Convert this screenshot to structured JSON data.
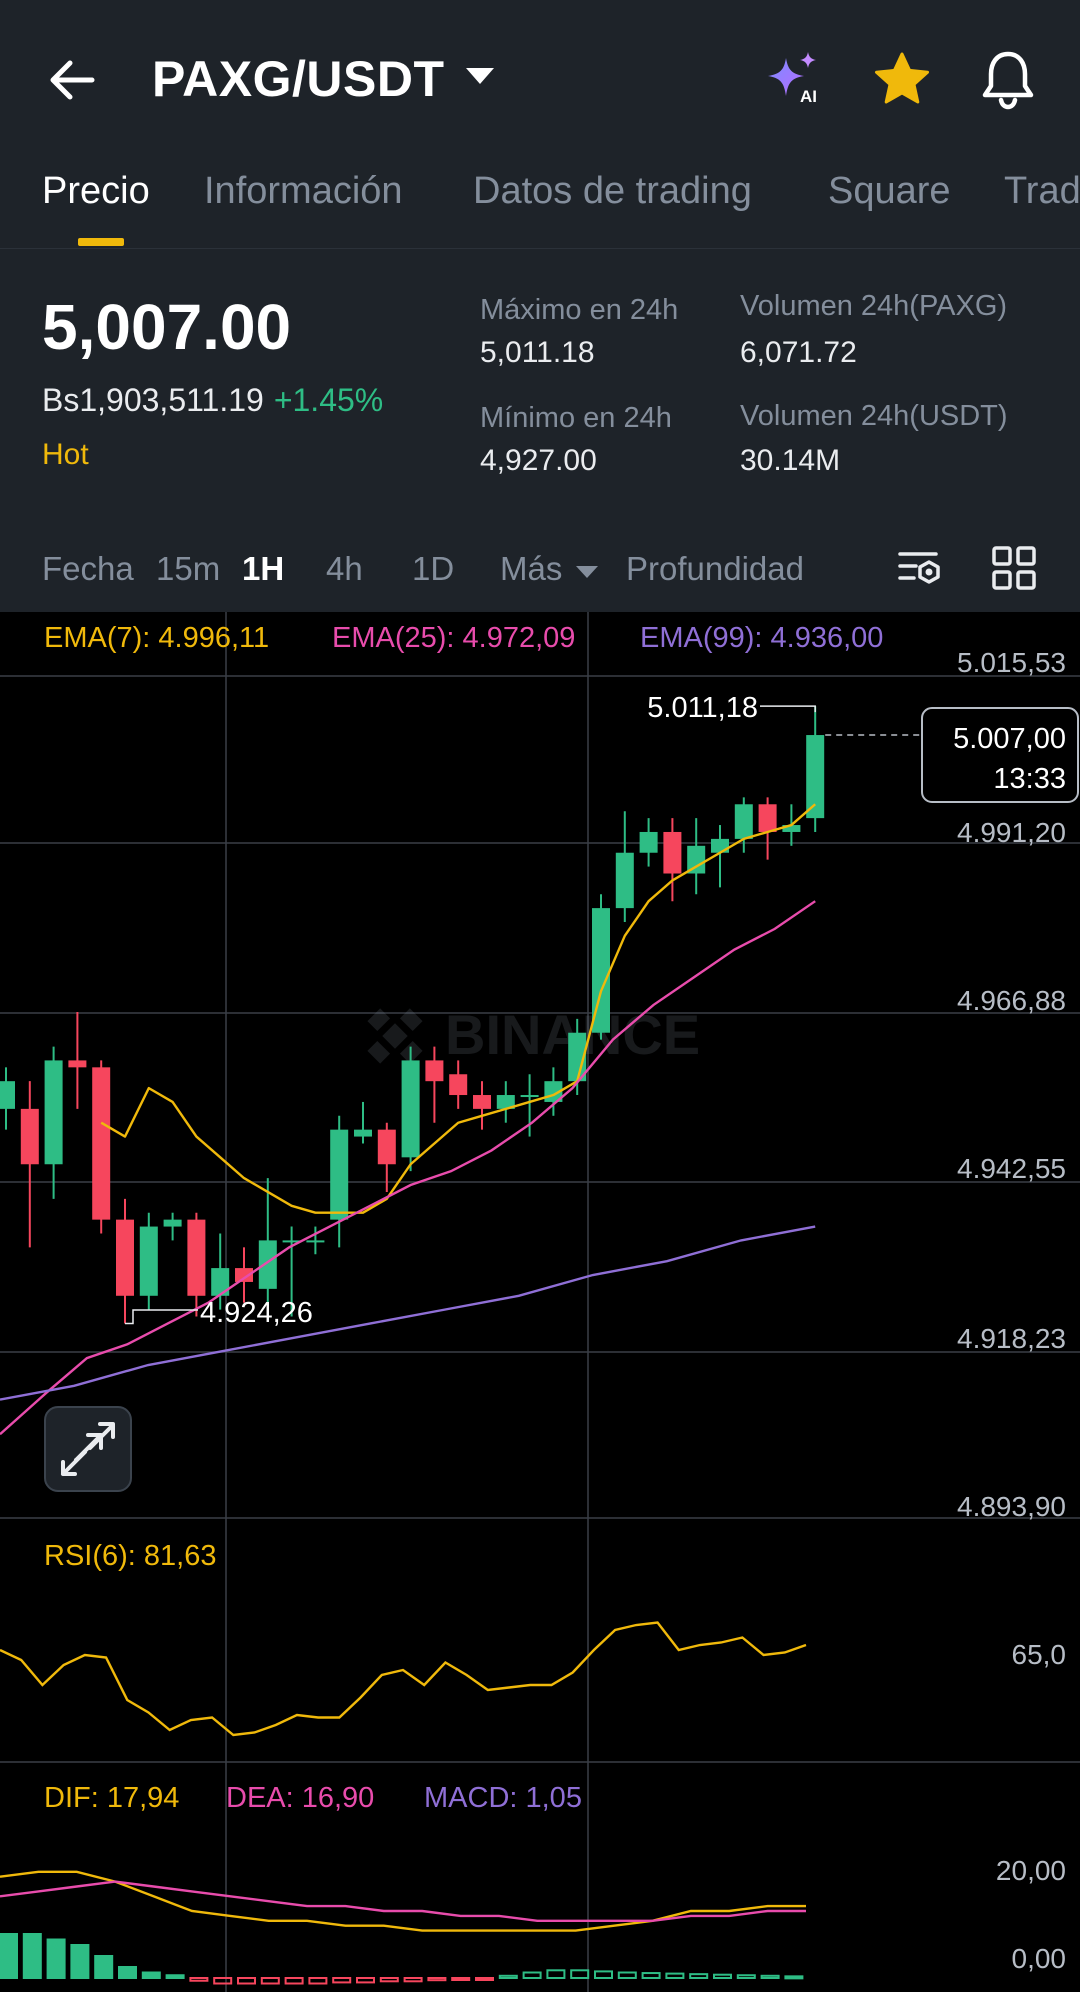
{
  "header": {
    "pair": "PAXG/USDT",
    "icons": [
      "back-arrow-icon",
      "ai-sparkle-icon",
      "star-icon",
      "bell-icon"
    ],
    "ai_label": "AI"
  },
  "tabs": [
    "Precio",
    "Información",
    "Datos de trading",
    "Square",
    "Trad"
  ],
  "ticker": {
    "price": "5,007.00",
    "fiat": "Bs1,903,511.19",
    "change": "+1.45%",
    "tag": "Hot",
    "high_label": "Máximo en 24h",
    "high_value": "5,011.18",
    "low_label": "Mínimo en 24h",
    "low_value": "4,927.00",
    "vol_base_label": "Volumen 24h(PAXG)",
    "vol_base_value": "6,071.72",
    "vol_quote_label": "Volumen 24h(USDT)",
    "vol_quote_value": "30.14M"
  },
  "intervals": {
    "date": "Fecha",
    "items": [
      "15m",
      "1H",
      "4h",
      "1D"
    ],
    "active": "1H",
    "more": "Más",
    "depth": "Profundidad"
  },
  "colors": {
    "up": "#2ebd85",
    "down": "#f6465d",
    "ema7": "#f0b90b",
    "ema25": "#e84cac",
    "ema99": "#8f6fd6",
    "accent": "#f0b90b"
  },
  "chart_data": {
    "type": "candlestick",
    "watermark": "BINANCE",
    "ema": {
      "ema7": "EMA(7): 4.996,11",
      "ema25": "EMA(25): 4.972,09",
      "ema99": "EMA(99): 4.936,00"
    },
    "y_ticks": [
      "5.015,53",
      "4.991,20",
      "4.966,88",
      "4.942,55",
      "4.918,23",
      "4.893,90"
    ],
    "last_price": "5.007,00",
    "countdown": "13:33",
    "high_label": "5.011,18",
    "low_label": "4.924,26",
    "candles": [
      {
        "o": 4953,
        "c": 4957,
        "h": 4959,
        "l": 4950
      },
      {
        "o": 4953,
        "c": 4945,
        "h": 4957,
        "l": 4933
      },
      {
        "o": 4945,
        "c": 4960,
        "h": 4962,
        "l": 4940
      },
      {
        "o": 4960,
        "c": 4959,
        "h": 4967,
        "l": 4953
      },
      {
        "o": 4959,
        "c": 4937,
        "h": 4960,
        "l": 4935
      },
      {
        "o": 4937,
        "c": 4926,
        "h": 4940,
        "l": 4922
      },
      {
        "o": 4926,
        "c": 4936,
        "h": 4938,
        "l": 4924
      },
      {
        "o": 4936,
        "c": 4937,
        "h": 4938,
        "l": 4934
      },
      {
        "o": 4937,
        "c": 4926,
        "h": 4938,
        "l": 4923
      },
      {
        "o": 4926,
        "c": 4930,
        "h": 4935,
        "l": 4924
      },
      {
        "o": 4930,
        "c": 4928,
        "h": 4933,
        "l": 4925
      },
      {
        "o": 4927,
        "c": 4934,
        "h": 4943,
        "l": 4925
      },
      {
        "o": 4934,
        "c": 4934,
        "h": 4936,
        "l": 4923
      },
      {
        "o": 4934,
        "c": 4934,
        "h": 4936,
        "l": 4932
      },
      {
        "o": 4937,
        "c": 4950,
        "h": 4952,
        "l": 4933
      },
      {
        "o": 4949,
        "c": 4950,
        "h": 4954,
        "l": 4948
      },
      {
        "o": 4950,
        "c": 4945,
        "h": 4951,
        "l": 4941
      },
      {
        "o": 4946,
        "c": 4960,
        "h": 4962,
        "l": 4944
      },
      {
        "o": 4960,
        "c": 4957,
        "h": 4962,
        "l": 4951
      },
      {
        "o": 4958,
        "c": 4955,
        "h": 4960,
        "l": 4953
      },
      {
        "o": 4955,
        "c": 4953,
        "h": 4957,
        "l": 4950
      },
      {
        "o": 4953,
        "c": 4955,
        "h": 4957,
        "l": 4951
      },
      {
        "o": 4955,
        "c": 4955,
        "h": 4958,
        "l": 4949
      },
      {
        "o": 4954,
        "c": 4957,
        "h": 4959,
        "l": 4952
      },
      {
        "o": 4957,
        "c": 4964,
        "h": 4966,
        "l": 4955
      },
      {
        "o": 4964,
        "c": 4982,
        "h": 4984,
        "l": 4963
      },
      {
        "o": 4982,
        "c": 4990,
        "h": 4996,
        "l": 4980
      },
      {
        "o": 4990,
        "c": 4993,
        "h": 4995,
        "l": 4988
      },
      {
        "o": 4993,
        "c": 4987,
        "h": 4995,
        "l": 4983
      },
      {
        "o": 4987,
        "c": 4991,
        "h": 4995,
        "l": 4984
      },
      {
        "o": 4990,
        "c": 4992,
        "h": 4994,
        "l": 4985
      },
      {
        "o": 4992,
        "c": 4997,
        "h": 4998,
        "l": 4990
      },
      {
        "o": 4997,
        "c": 4993,
        "h": 4998,
        "l": 4989
      },
      {
        "o": 4993,
        "c": 4994,
        "h": 4997,
        "l": 4991
      },
      {
        "o": 4995,
        "c": 5007,
        "h": 5011.18,
        "l": 4993
      }
    ],
    "ema7_values": [
      4951,
      4949,
      4956,
      4954,
      4949,
      4946,
      4943,
      4941,
      4939,
      4938,
      4938,
      4938,
      4940,
      4945,
      4948,
      4951,
      4952,
      4953,
      4954,
      4955,
      4957,
      4970,
      4978,
      4983,
      4986,
      4988,
      4990,
      4992,
      4993,
      4994,
      4997
    ],
    "ema25_values": [
      4906,
      4912,
      4917,
      4919,
      4922,
      4925,
      4929,
      4933,
      4936,
      4939,
      4942,
      4944,
      4947,
      4951,
      4956,
      4963,
      4968,
      4972,
      4976,
      4979,
      4983
    ],
    "ema99_values": [
      4911,
      4913,
      4916,
      4918,
      4920,
      4922,
      4924,
      4926,
      4929,
      4931,
      4934,
      4936
    ],
    "rsi": {
      "label": "RSI(6): 81,63",
      "tick": "65,0"
    },
    "macd": {
      "dif": "DIF: 17,94",
      "dea": "DEA: 16,90",
      "macd": "MACD: 1,05",
      "ticks": [
        "20,00",
        "0,00"
      ]
    }
  }
}
